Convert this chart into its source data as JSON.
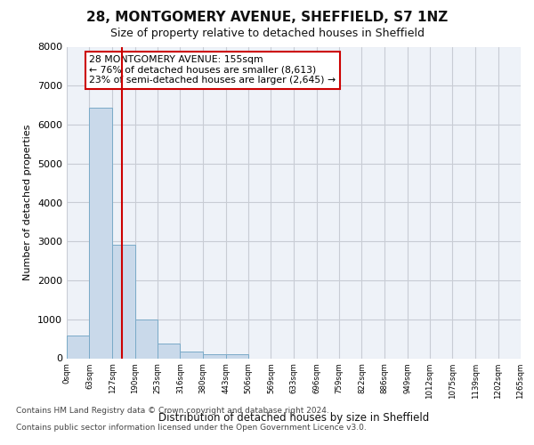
{
  "title": "28, MONTGOMERY AVENUE, SHEFFIELD, S7 1NZ",
  "subtitle": "Size of property relative to detached houses in Sheffield",
  "xlabel": "Distribution of detached houses by size in Sheffield",
  "ylabel": "Number of detached properties",
  "bar_color": "#c9d9ea",
  "bar_edgecolor": "#7aaac8",
  "grid_color": "#c8ccd4",
  "background_color": "#eef2f8",
  "annotation_text": "28 MONTGOMERY AVENUE: 155sqm\n← 76% of detached houses are smaller (8,613)\n23% of semi-detached houses are larger (2,645) →",
  "vline_x": 155,
  "vline_color": "#cc0000",
  "bin_edges": [
    0,
    63,
    127,
    190,
    253,
    316,
    380,
    443,
    506,
    569,
    633,
    696,
    759,
    822,
    886,
    949,
    1012,
    1075,
    1139,
    1202,
    1265
  ],
  "bar_heights": [
    575,
    6430,
    2920,
    990,
    370,
    175,
    105,
    100,
    0,
    0,
    0,
    0,
    0,
    0,
    0,
    0,
    0,
    0,
    0,
    0
  ],
  "xlim": [
    0,
    1265
  ],
  "ylim": [
    0,
    8000
  ],
  "yticks": [
    0,
    1000,
    2000,
    3000,
    4000,
    5000,
    6000,
    7000,
    8000
  ],
  "footer_line1": "Contains HM Land Registry data © Crown copyright and database right 2024.",
  "footer_line2": "Contains public sector information licensed under the Open Government Licence v3.0."
}
